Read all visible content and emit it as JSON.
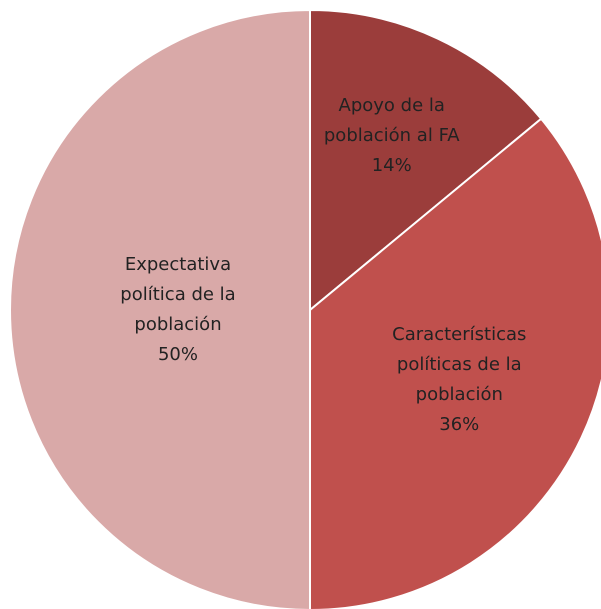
{
  "chart_data": {
    "type": "pie",
    "categories": [
      "Apoyo de la población al FA",
      "Características políticas de la población",
      "Expectativa política de la población"
    ],
    "values": [
      14,
      36,
      50
    ],
    "value_labels": [
      "14%",
      "36%",
      "50%"
    ],
    "colors": [
      "#9b3d3b",
      "#c0504d",
      "#d9a9a8"
    ]
  }
}
